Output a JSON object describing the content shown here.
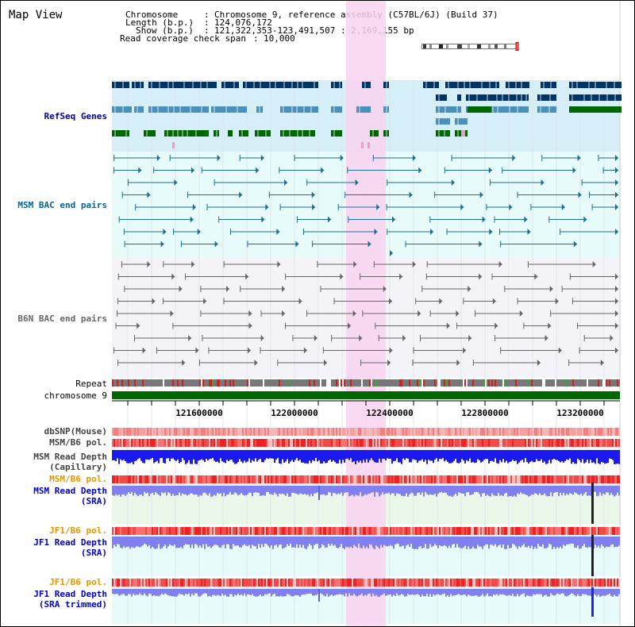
{
  "title": "Map View",
  "header": {
    "chromosome_key": "Chromosome",
    "chromosome_val": "Chromosome 9, reference assembly (C57BL/6J) (Build 37)",
    "length_key": "Length (b.p.)",
    "length_val": "124,076,172",
    "show_key": "Show (b.p.)",
    "show_val": "121,322,353-123,491,507 : 2,169,155 bp",
    "span_key": "Read coverage check span",
    "span_val": "10,000",
    "separator": ":"
  },
  "tracks": {
    "refseq": {
      "label": "RefSeq Genes",
      "color": "#000099"
    },
    "msm_bac": {
      "label": "MSM BAC end pairs",
      "color": "#006699"
    },
    "b6n_bac": {
      "label": "B6N BAC end pairs",
      "color": "#666666"
    },
    "repeat": {
      "label": "Repeat",
      "color": "#000000"
    },
    "chromosome": {
      "label": "chromosome 9",
      "color": "#000000"
    },
    "dbsnp": {
      "label": "dbSNP(Mouse)",
      "color": "#444444"
    },
    "msm_b6_pol": {
      "label": "MSM/B6 pol.",
      "color": "#444444"
    },
    "msm_depth_cap": {
      "label1": "MSM Read Depth",
      "label2": "(Capillary)",
      "color": "#444444"
    },
    "msm_b6_pol2": {
      "label": "MSM/B6 pol.",
      "color": "#e69500"
    },
    "msm_depth_sra": {
      "label1": "MSM Read Depth",
      "label2": "(SRA)",
      "color": "#0000cc"
    },
    "jf1_b6_pol": {
      "label": "JF1/B6 pol.",
      "color": "#e69500"
    },
    "jf1_depth_sra": {
      "label1": "JF1 Read Depth",
      "label2": "(SRA)",
      "color": "#0000cc"
    },
    "jf1_b6_pol2": {
      "label": "JF1/B6 pol.",
      "color": "#e69500"
    },
    "jf1_depth_trim": {
      "label1": "JF1 Read Depth",
      "label2": "(SRA trimmed)",
      "color": "#0000cc"
    }
  },
  "axis": {
    "ticks": [
      "121600000",
      "122000000",
      "122400000",
      "122800000",
      "123200000"
    ]
  },
  "colors": {
    "highlight": "#f9d4f0",
    "refseq_bg": "#d6eef8",
    "bac_bg": "#e8fbfb",
    "b6n_bg": "#f4f4f8",
    "depth_bg": "#eaf8ea",
    "chromosome": "#006600",
    "gene_dark": "#003366",
    "gene_mid": "#4a90b8",
    "gene_green": "#006600"
  }
}
